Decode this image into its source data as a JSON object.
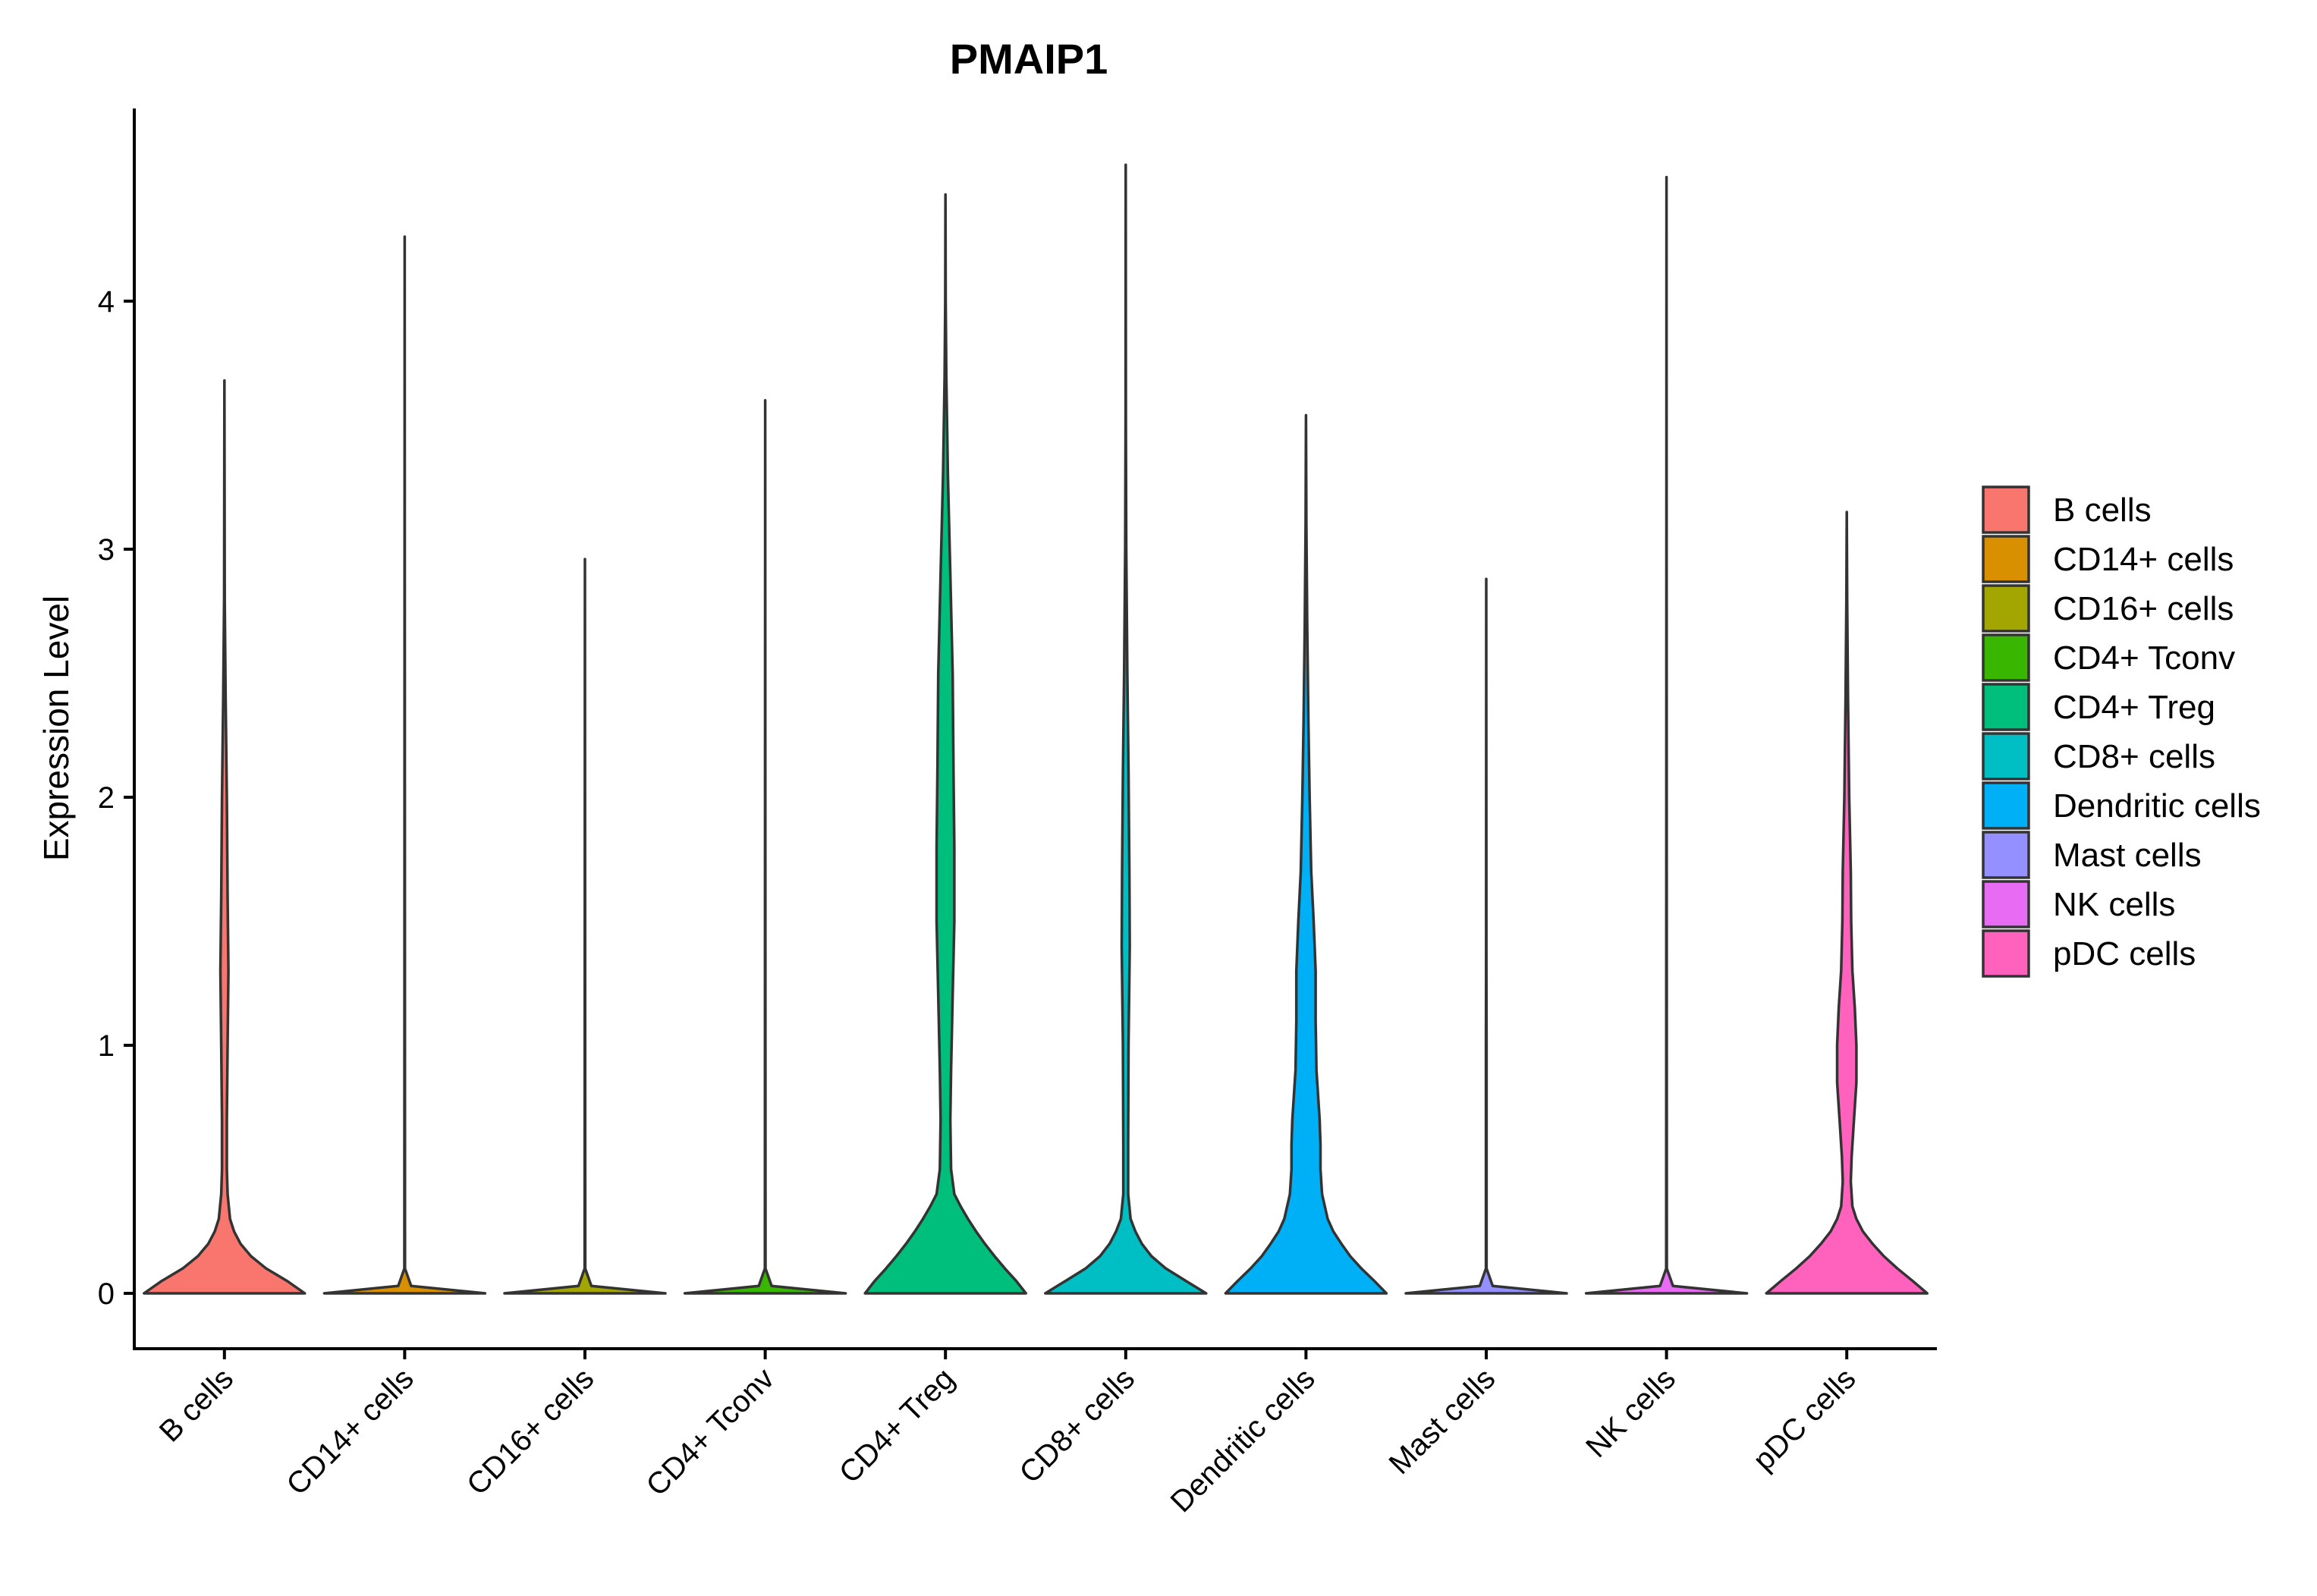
{
  "chart_data": {
    "type": "violin",
    "title": "PMAIP1",
    "xlabel": "",
    "ylabel": "Expression Level",
    "ylim": [
      -0.22,
      4.78
    ],
    "yticks": [
      0,
      1,
      2,
      3,
      4
    ],
    "grid": false,
    "legend_position": "right",
    "categories": [
      "B cells",
      "CD14+ cells",
      "CD16+ cells",
      "CD4+ Tconv",
      "CD4+ Treg",
      "CD8+ cells",
      "Dendritic cells",
      "Mast cells",
      "NK cells",
      "pDC cells"
    ],
    "series": [
      {
        "name": "B cells",
        "color": "#F8766D",
        "max": 3.68,
        "density": [
          [
            0,
            1.0
          ],
          [
            0.05,
            0.78
          ],
          [
            0.1,
            0.52
          ],
          [
            0.15,
            0.33
          ],
          [
            0.2,
            0.2
          ],
          [
            0.25,
            0.12
          ],
          [
            0.3,
            0.07
          ],
          [
            0.4,
            0.04
          ],
          [
            0.5,
            0.03
          ],
          [
            0.7,
            0.03
          ],
          [
            1.0,
            0.04
          ],
          [
            1.3,
            0.05
          ],
          [
            1.6,
            0.04
          ],
          [
            2.0,
            0.03
          ],
          [
            2.4,
            0.015
          ],
          [
            2.8,
            0.004
          ],
          [
            3.68,
            0
          ]
        ]
      },
      {
        "name": "CD14+ cells",
        "color": "#D89000",
        "max": 4.26,
        "density": [
          [
            0,
            1.0
          ],
          [
            0.03,
            0.08
          ],
          [
            0.1,
            0.004
          ],
          [
            4.26,
            0
          ]
        ]
      },
      {
        "name": "CD16+ cells",
        "color": "#A3A500",
        "max": 2.96,
        "density": [
          [
            0,
            1.0
          ],
          [
            0.03,
            0.08
          ],
          [
            0.1,
            0.004
          ],
          [
            2.96,
            0
          ]
        ]
      },
      {
        "name": "CD4+ Tconv",
        "color": "#39B600",
        "max": 3.6,
        "density": [
          [
            0,
            1.0
          ],
          [
            0.03,
            0.08
          ],
          [
            0.1,
            0.004
          ],
          [
            3.6,
            0
          ]
        ]
      },
      {
        "name": "CD4+ Treg",
        "color": "#00BF7D",
        "max": 4.43,
        "density": [
          [
            0,
            1.0
          ],
          [
            0.05,
            0.88
          ],
          [
            0.1,
            0.74
          ],
          [
            0.15,
            0.61
          ],
          [
            0.2,
            0.49
          ],
          [
            0.25,
            0.38
          ],
          [
            0.3,
            0.28
          ],
          [
            0.35,
            0.19
          ],
          [
            0.4,
            0.11
          ],
          [
            0.5,
            0.07
          ],
          [
            0.7,
            0.06
          ],
          [
            0.9,
            0.07
          ],
          [
            1.2,
            0.09
          ],
          [
            1.5,
            0.11
          ],
          [
            1.8,
            0.11
          ],
          [
            2.1,
            0.1
          ],
          [
            2.5,
            0.09
          ],
          [
            2.9,
            0.06
          ],
          [
            3.3,
            0.03
          ],
          [
            3.7,
            0.01
          ],
          [
            4.0,
            0.003
          ],
          [
            4.43,
            0
          ]
        ]
      },
      {
        "name": "CD8+ cells",
        "color": "#00BFC4",
        "max": 4.55,
        "density": [
          [
            0,
            1.0
          ],
          [
            0.05,
            0.75
          ],
          [
            0.1,
            0.5
          ],
          [
            0.15,
            0.32
          ],
          [
            0.2,
            0.2
          ],
          [
            0.25,
            0.12
          ],
          [
            0.3,
            0.06
          ],
          [
            0.4,
            0.03
          ],
          [
            0.6,
            0.03
          ],
          [
            1.0,
            0.035
          ],
          [
            1.4,
            0.05
          ],
          [
            1.7,
            0.045
          ],
          [
            2.1,
            0.035
          ],
          [
            2.5,
            0.02
          ],
          [
            3.0,
            0.007
          ],
          [
            3.5,
            0.002
          ],
          [
            4.55,
            0
          ]
        ]
      },
      {
        "name": "Dendritic cells",
        "color": "#00B0F6",
        "max": 3.54,
        "density": [
          [
            0,
            1.0
          ],
          [
            0.05,
            0.85
          ],
          [
            0.1,
            0.69
          ],
          [
            0.15,
            0.55
          ],
          [
            0.2,
            0.44
          ],
          [
            0.25,
            0.34
          ],
          [
            0.3,
            0.27
          ],
          [
            0.4,
            0.2
          ],
          [
            0.5,
            0.18
          ],
          [
            0.6,
            0.18
          ],
          [
            0.7,
            0.17
          ],
          [
            0.9,
            0.13
          ],
          [
            1.1,
            0.12
          ],
          [
            1.3,
            0.12
          ],
          [
            1.5,
            0.095
          ],
          [
            1.7,
            0.065
          ],
          [
            2.0,
            0.045
          ],
          [
            2.3,
            0.03
          ],
          [
            2.7,
            0.015
          ],
          [
            3.1,
            0.005
          ],
          [
            3.54,
            0
          ]
        ]
      },
      {
        "name": "Mast cells",
        "color": "#9590FF",
        "max": 2.88,
        "density": [
          [
            0,
            1.0
          ],
          [
            0.03,
            0.08
          ],
          [
            0.1,
            0.004
          ],
          [
            1.0,
            0.004
          ],
          [
            1.3,
            0.002
          ],
          [
            2.88,
            0
          ]
        ]
      },
      {
        "name": "NK cells",
        "color": "#E76BF3",
        "max": 4.5,
        "density": [
          [
            0,
            1.0
          ],
          [
            0.03,
            0.08
          ],
          [
            0.1,
            0.004
          ],
          [
            4.5,
            0
          ]
        ]
      },
      {
        "name": "pDC cells",
        "color": "#FF62BC",
        "max": 3.15,
        "density": [
          [
            0,
            1.0
          ],
          [
            0.05,
            0.82
          ],
          [
            0.1,
            0.63
          ],
          [
            0.15,
            0.46
          ],
          [
            0.2,
            0.32
          ],
          [
            0.25,
            0.2
          ],
          [
            0.3,
            0.12
          ],
          [
            0.35,
            0.07
          ],
          [
            0.45,
            0.05
          ],
          [
            0.55,
            0.06
          ],
          [
            0.7,
            0.09
          ],
          [
            0.85,
            0.12
          ],
          [
            1.0,
            0.12
          ],
          [
            1.15,
            0.1
          ],
          [
            1.3,
            0.07
          ],
          [
            1.5,
            0.055
          ],
          [
            1.7,
            0.05
          ],
          [
            2.0,
            0.03
          ],
          [
            2.4,
            0.015
          ],
          [
            2.8,
            0.005
          ],
          [
            3.15,
            0
          ]
        ]
      }
    ]
  }
}
